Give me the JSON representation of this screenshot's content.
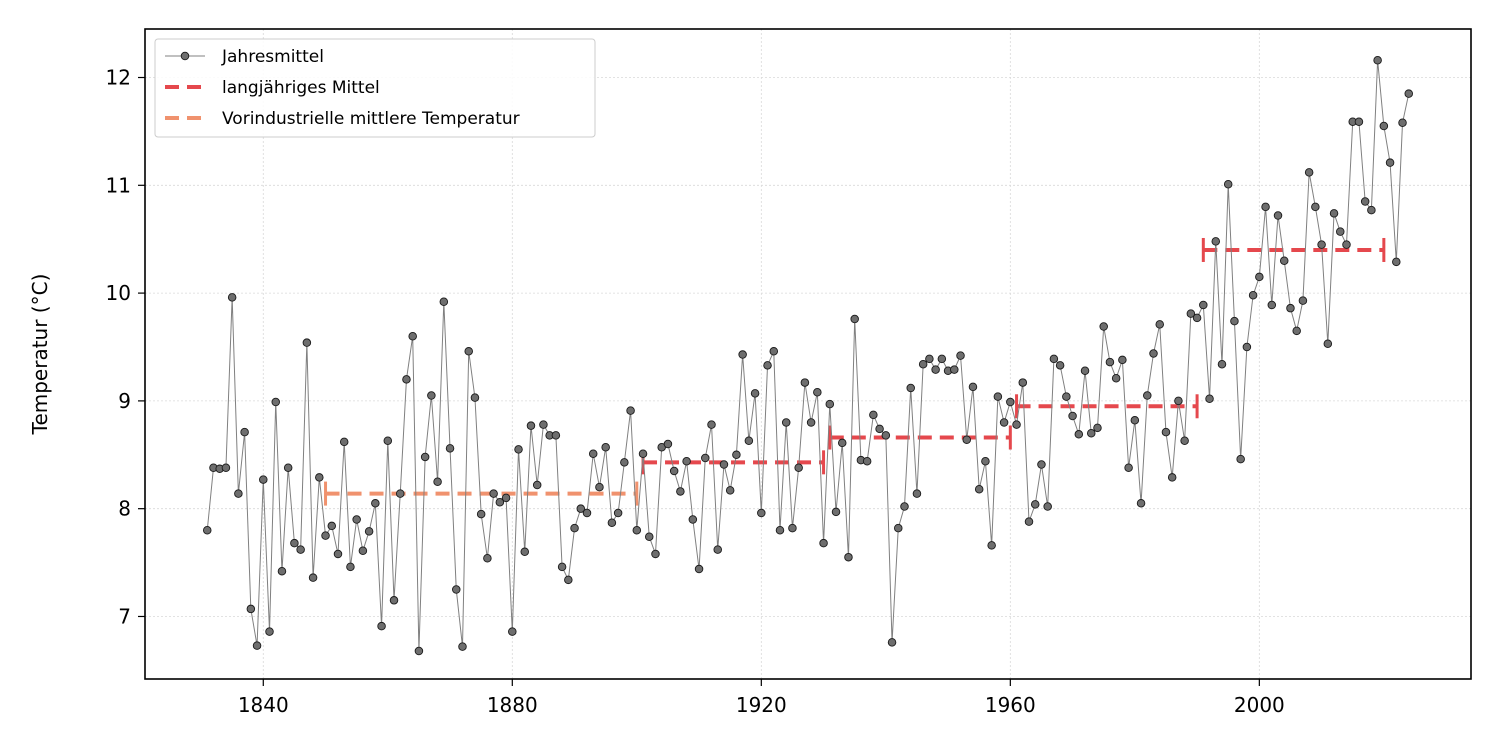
{
  "chart_data": {
    "type": "line",
    "title": "",
    "xlabel": "",
    "ylabel": "Temperatur (°C)",
    "xlim": [
      1821,
      2034
    ],
    "ylim": [
      6.42,
      12.45
    ],
    "x_ticks": [
      1840,
      1880,
      1920,
      1960,
      2000
    ],
    "y_ticks": [
      7,
      8,
      9,
      10,
      11,
      12
    ],
    "grid": true,
    "legend_position": "top-left",
    "series": [
      {
        "name": "Jahresmittel",
        "kind": "line-with-markers",
        "color": "#808080",
        "marker_color": "#6e6e6e",
        "x": [
          1831,
          1832,
          1833,
          1834,
          1835,
          1836,
          1837,
          1838,
          1839,
          1840,
          1841,
          1842,
          1843,
          1844,
          1845,
          1846,
          1847,
          1848,
          1849,
          1850,
          1851,
          1852,
          1853,
          1854,
          1855,
          1856,
          1857,
          1858,
          1859,
          1860,
          1861,
          1862,
          1863,
          1864,
          1865,
          1866,
          1867,
          1868,
          1869,
          1870,
          1871,
          1872,
          1873,
          1874,
          1875,
          1876,
          1877,
          1878,
          1879,
          1880,
          1881,
          1882,
          1883,
          1884,
          1885,
          1886,
          1887,
          1888,
          1889,
          1890,
          1891,
          1892,
          1893,
          1894,
          1895,
          1896,
          1897,
          1898,
          1899,
          1900,
          1901,
          1902,
          1903,
          1904,
          1905,
          1906,
          1907,
          1908,
          1909,
          1910,
          1911,
          1912,
          1913,
          1914,
          1915,
          1916,
          1917,
          1918,
          1919,
          1920,
          1921,
          1922,
          1923,
          1924,
          1925,
          1926,
          1927,
          1928,
          1929,
          1930,
          1931,
          1932,
          1933,
          1934,
          1935,
          1936,
          1937,
          1938,
          1939,
          1940,
          1941,
          1942,
          1943,
          1944,
          1945,
          1946,
          1947,
          1948,
          1949,
          1950,
          1951,
          1952,
          1953,
          1954,
          1955,
          1956,
          1957,
          1958,
          1959,
          1960,
          1961,
          1962,
          1963,
          1964,
          1965,
          1966,
          1967,
          1968,
          1969,
          1970,
          1971,
          1972,
          1973,
          1974,
          1975,
          1976,
          1977,
          1978,
          1979,
          1980,
          1981,
          1982,
          1983,
          1984,
          1985,
          1986,
          1987,
          1988,
          1989,
          1990,
          1991,
          1992,
          1993,
          1994,
          1995,
          1996,
          1997,
          1998,
          1999,
          2000,
          2001,
          2002,
          2003,
          2004,
          2005,
          2006,
          2007,
          2008,
          2009,
          2010,
          2011,
          2012,
          2013,
          2014,
          2015,
          2016,
          2017,
          2018,
          2019,
          2020,
          2021,
          2022,
          2023,
          2024
        ],
        "y": [
          7.8,
          8.38,
          8.37,
          8.38,
          9.96,
          8.14,
          8.71,
          7.07,
          6.73,
          8.27,
          6.86,
          8.99,
          7.42,
          8.38,
          7.68,
          7.62,
          9.54,
          7.36,
          8.29,
          7.75,
          7.84,
          7.58,
          8.62,
          7.46,
          7.9,
          7.61,
          7.79,
          8.05,
          6.91,
          8.63,
          7.15,
          8.14,
          9.2,
          9.6,
          6.68,
          8.48,
          9.05,
          8.25,
          9.92,
          8.56,
          7.25,
          6.72,
          9.46,
          9.03,
          7.95,
          7.54,
          8.14,
          8.06,
          8.1,
          6.86,
          8.55,
          7.6,
          8.77,
          8.22,
          8.78,
          8.68,
          8.68,
          7.46,
          7.34,
          7.82,
          8.0,
          7.96,
          8.51,
          8.2,
          8.57,
          7.87,
          7.96,
          8.43,
          8.91,
          7.8,
          8.51,
          7.74,
          7.58,
          8.57,
          8.6,
          8.35,
          8.16,
          8.44,
          7.9,
          7.44,
          8.47,
          8.78,
          7.62,
          8.41,
          8.17,
          8.5,
          9.43,
          8.63,
          9.07,
          7.96,
          9.33,
          9.46,
          7.8,
          8.8,
          7.82,
          8.38,
          9.17,
          8.8,
          9.08,
          7.68,
          8.97,
          7.97,
          8.61,
          7.55,
          9.76,
          8.45,
          8.44,
          8.87,
          8.74,
          8.68,
          6.76,
          7.82,
          8.02,
          9.12,
          8.14,
          9.34,
          9.39,
          9.29,
          9.39,
          9.28,
          9.29,
          9.42,
          8.64,
          9.13,
          8.18,
          8.44,
          7.66,
          9.04,
          8.8,
          8.99,
          8.78,
          9.17,
          7.88,
          8.04,
          8.41,
          8.02,
          9.39,
          9.33,
          9.04,
          8.86,
          8.69,
          9.28,
          8.7,
          8.75,
          9.69,
          9.36,
          9.21,
          9.38,
          8.38,
          8.82,
          8.05,
          9.05,
          9.44,
          9.71,
          8.71,
          8.29,
          9.0,
          8.63,
          9.81,
          9.77,
          9.89,
          9.02,
          10.48,
          9.34,
          11.01,
          9.74,
          8.46,
          9.5,
          9.98,
          10.15,
          10.8,
          9.89,
          10.72,
          10.3,
          9.86,
          9.65,
          9.93,
          11.12,
          10.8,
          10.45,
          9.53,
          10.74,
          10.57,
          10.45,
          11.59,
          11.59,
          10.85,
          10.77,
          12.16,
          11.55,
          11.21,
          10.29,
          11.58,
          11.85
        ]
      },
      {
        "name": "langjähriges Mittel",
        "kind": "period-mean",
        "color": "#e5484d",
        "periods": [
          {
            "start": 1901,
            "end": 1930,
            "value": 8.43
          },
          {
            "start": 1931,
            "end": 1960,
            "value": 8.66
          },
          {
            "start": 1961,
            "end": 1990,
            "value": 8.95
          },
          {
            "start": 1991,
            "end": 2020,
            "value": 10.4
          }
        ]
      },
      {
        "name": "Vorindustrielle mittlere Temperatur",
        "kind": "period-mean",
        "color": "#f0926e",
        "periods": [
          {
            "start": 1850,
            "end": 1900,
            "value": 8.14
          }
        ]
      }
    ]
  }
}
